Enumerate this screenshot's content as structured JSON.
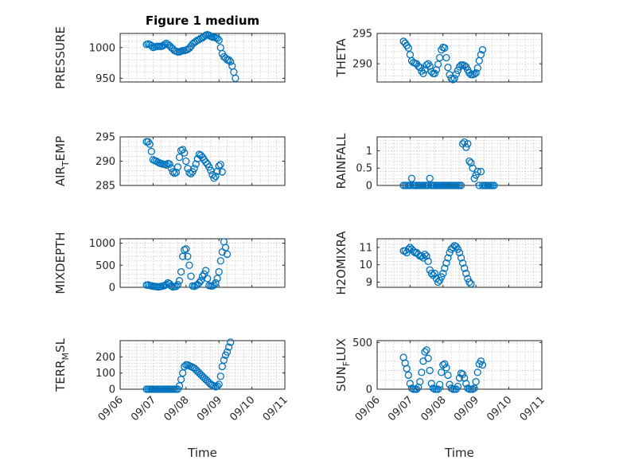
{
  "figure": {
    "title": "Figure 1 medium",
    "marker_color": "#0072BD"
  },
  "chart_data": [
    {
      "type": "scatter",
      "title": "Figure 1 medium",
      "ylabel": "PRESSURE",
      "xlabel": "",
      "xlim": [
        0,
        5
      ],
      "ylim": [
        944,
        1023
      ],
      "yticks": [
        950,
        1000
      ],
      "ytick_labels": [
        "950",
        "1000"
      ],
      "xticks": [
        0,
        1,
        2,
        3,
        4,
        5
      ],
      "xtick_labels": [
        "09/06",
        "09/07",
        "09/08",
        "09/09",
        "09/10",
        "09/11"
      ],
      "x_start": 0.8,
      "x_step": 0.05,
      "values": [
        1005,
        1006,
        1005,
        1003,
        1000,
        1001,
        1002,
        1002,
        1002,
        1002,
        1003,
        1005,
        1007,
        1005,
        1003,
        1000,
        998,
        995,
        994,
        993,
        993,
        994,
        995,
        995,
        996,
        997,
        999,
        1002,
        1006,
        1008,
        1010,
        1012,
        1013,
        1015,
        1016,
        1018,
        1020,
        1021,
        1020,
        1018,
        1017,
        1017,
        1016,
        1015,
        1012,
        1000,
        990,
        985,
        983,
        980,
        980,
        977,
        970,
        960,
        950
      ],
      "grid": true
    },
    {
      "type": "scatter",
      "ylabel": "THETA",
      "xlabel": "",
      "xlim": [
        0,
        5
      ],
      "ylim": [
        287,
        295
      ],
      "yticks": [
        290,
        295
      ],
      "ytick_labels": [
        "290",
        "295"
      ],
      "xticks": [
        0,
        1,
        2,
        3,
        4,
        5
      ],
      "xtick_labels": [
        "09/06",
        "09/07",
        "09/08",
        "09/09",
        "09/10",
        "09/11"
      ],
      "x_start": 0.8,
      "x_step": 0.05,
      "values": [
        293.7,
        293.4,
        293,
        292.6,
        291.5,
        290.5,
        290.2,
        290.1,
        290,
        289.6,
        289.4,
        288.8,
        288.4,
        289,
        289.8,
        290,
        289.6,
        288.7,
        288.4,
        288.4,
        289,
        289.9,
        291,
        292.3,
        292.7,
        292.6,
        291,
        289.4,
        288.2,
        287.6,
        287.4,
        287.6,
        288.3,
        288.9,
        289.5,
        289.8,
        289.8,
        289.7,
        289.5,
        289,
        288.5,
        288.2,
        288.2,
        288.3,
        288.5,
        289.3,
        290.5,
        291.5,
        292.3
      ],
      "grid": true
    },
    {
      "type": "scatter",
      "ylabel": "AIR_TEMP",
      "xlabel": "",
      "xlim": [
        0,
        5
      ],
      "ylim": [
        285,
        295
      ],
      "yticks": [
        285,
        290,
        295
      ],
      "ytick_labels": [
        "285",
        "290",
        "295"
      ],
      "xticks": [
        0,
        1,
        2,
        3,
        4,
        5
      ],
      "xtick_labels": [
        "09/06",
        "09/07",
        "09/08",
        "09/09",
        "09/10",
        "09/11"
      ],
      "x_start": 0.8,
      "x_step": 0.05,
      "values": [
        294,
        294,
        293.5,
        292,
        290.3,
        290.1,
        290,
        289.8,
        289.6,
        289.5,
        289.4,
        289.3,
        289.2,
        289.5,
        289.4,
        288.6,
        287.8,
        287.5,
        287.7,
        288.8,
        290.8,
        292.2,
        292.4,
        291.7,
        290,
        288.5,
        287.6,
        287.4,
        287.8,
        288.5,
        289.4,
        290.5,
        291.4,
        291.2,
        290.8,
        290.3,
        289.8,
        289.4,
        288.8,
        288.1,
        287.2,
        286.5,
        286.9,
        287.9,
        289,
        289.3,
        287.8
      ],
      "grid": true
    },
    {
      "type": "scatter",
      "ylabel": "RAINFALL",
      "xlabel": "",
      "xlim": [
        0,
        5
      ],
      "ylim": [
        0,
        1.4
      ],
      "yticks": [
        0,
        0.5,
        1
      ],
      "ytick_labels": [
        "0",
        "0.5",
        "1"
      ],
      "xticks": [
        0,
        1,
        2,
        3,
        4,
        5
      ],
      "xtick_labels": [
        "09/06",
        "09/07",
        "09/08",
        "09/09",
        "09/10",
        "09/11"
      ],
      "x_start": 0.8,
      "x_step": 0.05,
      "values": [
        0,
        0,
        0,
        0,
        0,
        0.2,
        0,
        0,
        0,
        0,
        0,
        0,
        0,
        0,
        0,
        0,
        0.2,
        0,
        0,
        0,
        0,
        0,
        0,
        0,
        0,
        0,
        0,
        0,
        0,
        0,
        0,
        0,
        0,
        0,
        0,
        0,
        1.2,
        1.25,
        1.1,
        1.2,
        0.7,
        0.65,
        0.5,
        0.2,
        0.3,
        0.4,
        0,
        0.4,
        0,
        0,
        0,
        0,
        0,
        0,
        0,
        0
      ],
      "grid": true
    },
    {
      "type": "scatter",
      "ylabel": "MIXDEPTH",
      "xlabel": "",
      "xlim": [
        0,
        5
      ],
      "ylim": [
        0,
        1100
      ],
      "yticks": [
        0,
        500,
        1000
      ],
      "ytick_labels": [
        "0",
        "500",
        "1000"
      ],
      "xticks": [
        0,
        1,
        2,
        3,
        4,
        5
      ],
      "xtick_labels": [
        "09/06",
        "09/07",
        "09/08",
        "09/09",
        "09/10",
        "09/11"
      ],
      "x_start": 0.8,
      "x_step": 0.05,
      "values": [
        50,
        55,
        40,
        35,
        25,
        20,
        15,
        10,
        15,
        20,
        30,
        40,
        60,
        100,
        80,
        30,
        10,
        15,
        20,
        60,
        150,
        350,
        700,
        850,
        870,
        700,
        500,
        250,
        30,
        20,
        40,
        60,
        100,
        150,
        250,
        300,
        380,
        200,
        40,
        30,
        30,
        50,
        100,
        200,
        350,
        600,
        800,
        1030,
        900,
        750
      ],
      "grid": true
    },
    {
      "type": "scatter",
      "ylabel": "H2OMIXRA",
      "xlabel": "",
      "xlim": [
        0,
        5
      ],
      "ylim": [
        8.7,
        11.5
      ],
      "yticks": [
        9,
        10,
        11
      ],
      "ytick_labels": [
        "9",
        "10",
        "11"
      ],
      "xticks": [
        0,
        1,
        2,
        3,
        4,
        5
      ],
      "xtick_labels": [
        "09/06",
        "09/07",
        "09/08",
        "09/09",
        "09/10",
        "09/11"
      ],
      "x_start": 0.8,
      "x_step": 0.05,
      "values": [
        10.8,
        10.8,
        10.7,
        10.9,
        11,
        10.9,
        10.8,
        10.7,
        10.7,
        10.6,
        10.5,
        10.5,
        10.4,
        10.6,
        10.5,
        10.2,
        9.7,
        9.5,
        9.4,
        9.5,
        9.2,
        9.0,
        9.1,
        9.3,
        9.5,
        9.8,
        10.1,
        10.4,
        10.7,
        10.9,
        11.0,
        11.1,
        11.05,
        10.9,
        10.7,
        10.4,
        10.1,
        9.8,
        9.5,
        9.2,
        9.0,
        8.9
      ],
      "grid": true
    },
    {
      "type": "scatter",
      "ylabel": "TERR_MSL",
      "xlabel": "Time",
      "xlim": [
        0,
        5
      ],
      "ylim": [
        0,
        300
      ],
      "yticks": [
        0,
        100,
        200
      ],
      "ytick_labels": [
        "0",
        "100",
        "200"
      ],
      "xticks": [
        0,
        1,
        2,
        3,
        4,
        5
      ],
      "xtick_labels": [
        "09/06",
        "09/07",
        "09/08",
        "09/09",
        "09/10",
        "09/11"
      ],
      "x_start": 0.8,
      "x_step": 0.05,
      "values": [
        0,
        0,
        0,
        0,
        0,
        0,
        0,
        0,
        0,
        0,
        0,
        0,
        0,
        0,
        0,
        0,
        0,
        0,
        0,
        0,
        20,
        60,
        100,
        140,
        150,
        150,
        145,
        140,
        135,
        130,
        120,
        110,
        100,
        90,
        80,
        70,
        60,
        50,
        40,
        30,
        25,
        20,
        15,
        20,
        30,
        80,
        140,
        180,
        210,
        230,
        260,
        290
      ],
      "grid": true
    },
    {
      "type": "scatter",
      "ylabel": "SUN_FLUX",
      "xlabel": "Time",
      "xlim": [
        0,
        5
      ],
      "ylim": [
        0,
        520
      ],
      "yticks": [
        0,
        500
      ],
      "ytick_labels": [
        "0",
        "500"
      ],
      "xticks": [
        0,
        1,
        2,
        3,
        4,
        5
      ],
      "xtick_labels": [
        "09/06",
        "09/07",
        "09/08",
        "09/09",
        "09/10",
        "09/11"
      ],
      "x_start": 0.8,
      "x_step": 0.05,
      "values": [
        340,
        280,
        220,
        150,
        60,
        10,
        0,
        0,
        0,
        20,
        80,
        180,
        300,
        400,
        420,
        330,
        200,
        60,
        10,
        0,
        0,
        0,
        50,
        180,
        260,
        270,
        230,
        150,
        50,
        10,
        0,
        0,
        0,
        30,
        120,
        170,
        160,
        120,
        60,
        10,
        0,
        0,
        0,
        10,
        80,
        180,
        270,
        300,
        260
      ],
      "grid": true
    }
  ]
}
